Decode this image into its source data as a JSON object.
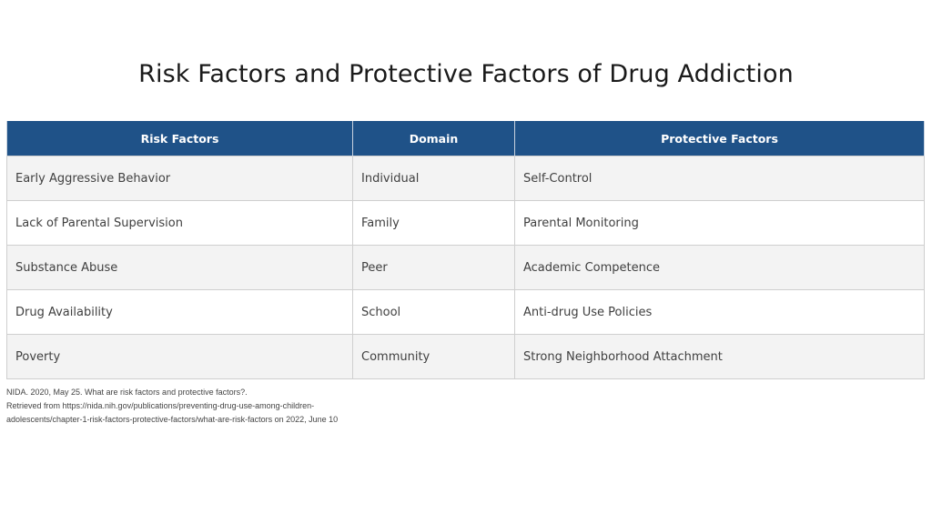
{
  "title": "Risk Factors and Protective Factors of Drug Addiction",
  "table": {
    "headers": [
      "Risk Factors",
      "Domain",
      "Protective Factors"
    ],
    "rows": [
      [
        "Early Aggressive Behavior",
        "Individual",
        "Self-Control"
      ],
      [
        "Lack of Parental Supervision",
        "Family",
        "Parental Monitoring"
      ],
      [
        "Substance Abuse",
        "Peer",
        "Academic Competence"
      ],
      [
        "Drug Availability",
        "School",
        "Anti-drug Use Policies"
      ],
      [
        "Poverty",
        "Community",
        "Strong Neighborhood Attachment"
      ]
    ]
  },
  "citation": {
    "lines": [
      "NIDA. 2020, May 25. What are risk factors and protective factors?.",
      "Retrieved from https://nida.nih.gov/publications/preventing-drug-use-among-children-",
      "adolescents/chapter-1-risk-factors-protective-factors/what-are-risk-factors on 2022, June 10"
    ]
  },
  "colors": {
    "header_bg": "#1f5288",
    "header_text": "#ffffff",
    "row_alt_bg": "#f3f3f3",
    "border": "#cfcfcf"
  }
}
